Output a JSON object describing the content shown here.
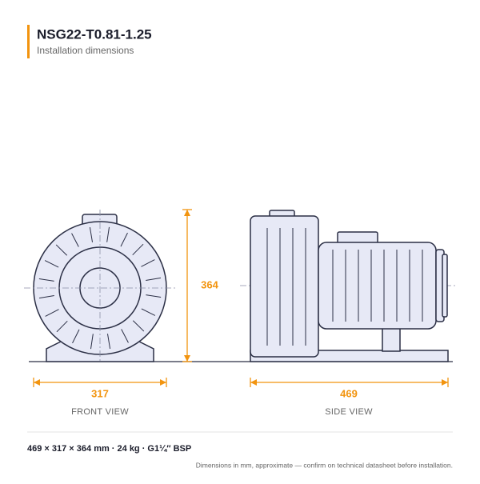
{
  "header": {
    "title": "NSG22-T0.81-1.25",
    "subtitle": "Installation dimensions"
  },
  "dimensions": {
    "height": 364,
    "width": 317,
    "length": 469
  },
  "views": {
    "front": "FRONT VIEW",
    "side": "SIDE VIEW"
  },
  "footer": {
    "specs": "469 × 317 × 364 mm  ·  24 kg  ·  G1¼″ BSP",
    "note": "Dimensions in mm, approximate — confirm on technical datasheet before installation."
  }
}
